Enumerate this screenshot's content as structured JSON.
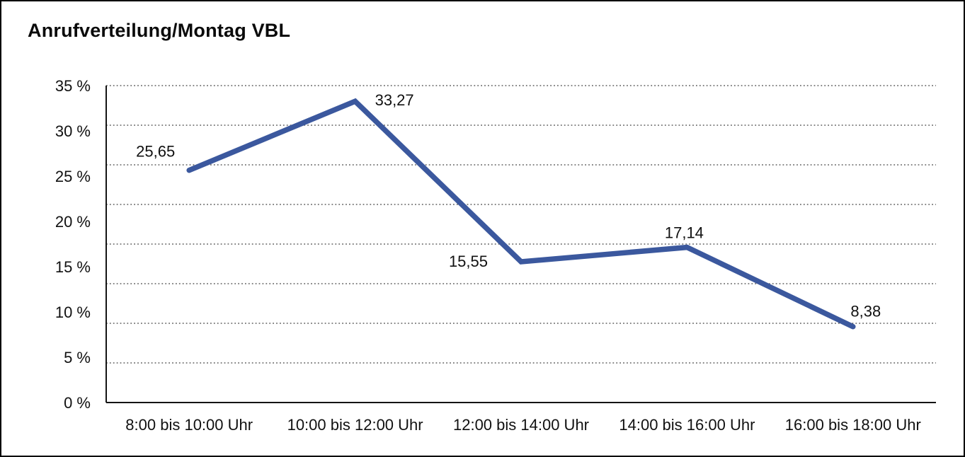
{
  "window": {
    "title": "Anrufverteilung/Montag VBL"
  },
  "chart_data": {
    "type": "line",
    "title": "Anrufverteilung/Montag VBL",
    "categories": [
      "8:00 bis 10:00 Uhr",
      "10:00 bis 12:00 Uhr",
      "12:00 bis 14:00 Uhr",
      "14:00 bis 16:00 Uhr",
      "16:00 bis 18:00 Uhr"
    ],
    "values": [
      25.65,
      33.27,
      15.55,
      17.14,
      8.38
    ],
    "point_labels": [
      "25,65",
      "33,27",
      "15,55",
      "17,14",
      "8,38"
    ],
    "y_tick_labels": [
      "0 %",
      "5 %",
      "10 %",
      "15 %",
      "20 %",
      "25 %",
      "30 %",
      "35 %"
    ],
    "y_tick_step": 5,
    "ylim": [
      0,
      35
    ],
    "xlabel": "",
    "ylabel": "",
    "gridline_divisions": 8,
    "grid": "horizontal-dotted",
    "legend": "none",
    "line_color": "#3B589E",
    "axis_color": "#141414",
    "background_color": "#FFFFFF"
  }
}
